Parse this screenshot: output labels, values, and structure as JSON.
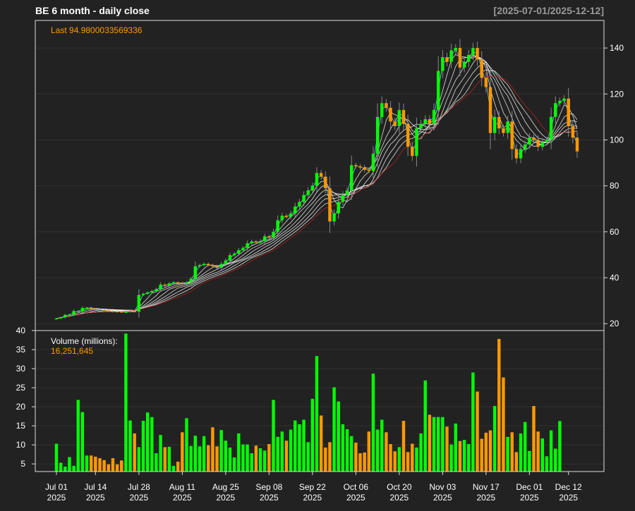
{
  "header": {
    "title": "BE  6 month - daily close",
    "range": "[2025-07-01/2025-12-12]"
  },
  "colors": {
    "background": "#222222",
    "up": "#00ff00",
    "down": "#ff9900",
    "text": "#ffffff",
    "range_text": "#999999",
    "grid": "#333333",
    "accent_text": "#ff9900"
  },
  "chart_data": [
    {
      "type": "candlestick",
      "title": "BE  6 month - daily close",
      "subtitle": "[2025-07-01/2025-12-12]",
      "annotation": "Last 94.9800033569336",
      "last": 94.9800033569336,
      "ylim": [
        17,
        152
      ],
      "yticks": [
        20,
        40,
        60,
        80,
        100,
        120,
        140
      ],
      "grid": true,
      "overlays": "moving averages (ribbon)",
      "x_tick_labels": [
        {
          "label": "Jul 01",
          "year": "2025",
          "index": 0
        },
        {
          "label": "Jul 14",
          "year": "2025",
          "index": 9
        },
        {
          "label": "Jul 28",
          "year": "2025",
          "index": 19
        },
        {
          "label": "Aug 11",
          "year": "2025",
          "index": 29
        },
        {
          "label": "Aug 25",
          "year": "2025",
          "index": 39
        },
        {
          "label": "Sep 08",
          "year": "2025",
          "index": 49
        },
        {
          "label": "Sep 22",
          "year": "2025",
          "index": 59
        },
        {
          "label": "Oct 06",
          "year": "2025",
          "index": 69
        },
        {
          "label": "Oct 20",
          "year": "2025",
          "index": 79
        },
        {
          "label": "Nov 03",
          "year": "2025",
          "index": 89
        },
        {
          "label": "Nov 17",
          "year": "2025",
          "index": 99
        },
        {
          "label": "Dec 01",
          "year": "2025",
          "index": 109
        },
        {
          "label": "Dec 12",
          "year": "2025",
          "index": 118
        }
      ],
      "close": [
        22.3,
        22.8,
        23.8,
        24,
        25.5,
        25.5,
        26.8,
        27,
        26.5,
        26.4,
        26.1,
        25.8,
        25.5,
        25.4,
        25.3,
        25.1,
        25.2,
        25.5,
        25.2,
        32.5,
        33,
        33.6,
        34.2,
        35,
        37,
        36.5,
        37.5,
        38,
        37.8,
        37.4,
        38,
        39.5,
        45,
        45.5,
        46,
        45.5,
        45,
        44.3,
        46,
        47.5,
        49.8,
        50.5,
        52,
        53,
        55,
        55.8,
        55.3,
        56,
        58,
        57.5,
        60,
        65,
        67,
        66.5,
        68,
        71,
        73,
        76,
        78,
        80,
        85.6,
        84,
        79,
        64.5,
        68,
        73,
        76,
        78,
        89,
        88.5,
        88,
        87,
        86.5,
        94,
        110,
        116,
        114,
        108,
        106,
        113,
        107,
        97,
        93,
        105,
        107,
        109,
        107,
        113,
        130,
        136,
        134,
        139,
        140,
        131.5,
        134,
        137,
        140,
        135,
        127,
        123,
        103,
        110,
        105,
        103,
        108,
        96,
        92,
        96,
        98,
        101,
        100,
        97,
        99,
        100,
        110,
        116,
        117,
        118,
        106,
        101,
        94.98
      ],
      "volume_panel": {
        "label": "Volume (millions):",
        "last_value": "16,251,645",
        "ylim": [
          3,
          40
        ],
        "yticks": [
          5,
          10,
          15,
          20,
          25,
          30,
          35,
          40
        ],
        "values": [
          10.3,
          5.3,
          4.3,
          6.8,
          4.5,
          21.8,
          18.6,
          7.2,
          7.2,
          6.9,
          6.5,
          6.0,
          4.9,
          6.5,
          4.9,
          5.9,
          39.2,
          16.4,
          13.0,
          9.4,
          16.3,
          18.5,
          17.3,
          7.8,
          12.6,
          9.4,
          9.5,
          4.5,
          5.6,
          13.3,
          17.0,
          9.7,
          12.4,
          9.6,
          12.3,
          9.9,
          14.6,
          9.6,
          13.9,
          11.1,
          9.3,
          6.7,
          13.0,
          10.1,
          10.1,
          7.8,
          9.8,
          9.1,
          8.5,
          10.2,
          21.8,
          12.1,
          13.5,
          11.1,
          14.0,
          16.4,
          15.4,
          16.6,
          10.7,
          22.1,
          33.3,
          17.7,
          9.3,
          10.7,
          25.1,
          21.4,
          15.4,
          14.1,
          12.3,
          10.6,
          7.8,
          8.0,
          13.5,
          28.7,
          14.0,
          16.6,
          13.3,
          10.2,
          8.3,
          9.4,
          16.3,
          8.1,
          10.3,
          9.3,
          13.0,
          26.9,
          17.9,
          17.3,
          17.3,
          17.3,
          14.8,
          10.1,
          15.6,
          11.0,
          11.3,
          10.2,
          29.0,
          24.0,
          11.6,
          13.2,
          13.8,
          20.2,
          37.8,
          27.7,
          12.1,
          13.3,
          8.1,
          13.0,
          16.0,
          8.4,
          20.2,
          13.5,
          11.7,
          7.0,
          13.8,
          9.0,
          16.25
        ]
      }
    }
  ],
  "x_axis": {
    "ticks": [
      {
        "label": "Jul 01",
        "year": "2025"
      },
      {
        "label": "Jul 14",
        "year": "2025"
      },
      {
        "label": "Jul 28",
        "year": "2025"
      },
      {
        "label": "Aug 11",
        "year": "2025"
      },
      {
        "label": "Aug 25",
        "year": "2025"
      },
      {
        "label": "Sep 08",
        "year": "2025"
      },
      {
        "label": "Sep 22",
        "year": "2025"
      },
      {
        "label": "Oct 06",
        "year": "2025"
      },
      {
        "label": "Oct 20",
        "year": "2025"
      },
      {
        "label": "Nov 03",
        "year": "2025"
      },
      {
        "label": "Nov 17",
        "year": "2025"
      },
      {
        "label": "Dec 01",
        "year": "2025"
      },
      {
        "label": "Dec 12",
        "year": "2025"
      }
    ]
  }
}
